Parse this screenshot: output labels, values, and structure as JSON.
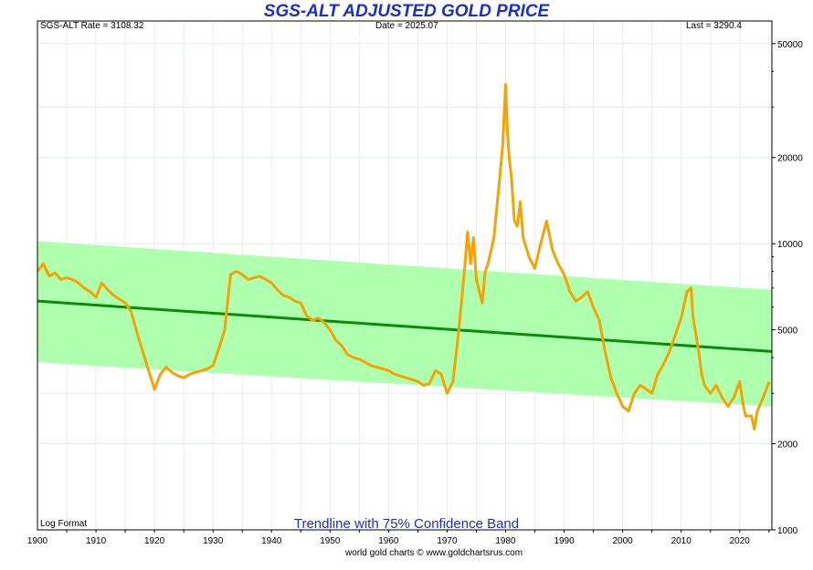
{
  "chart_data": {
    "type": "line",
    "title": "SGS-ALT ADJUSTED  GOLD PRICE",
    "info": {
      "rate": "SGS-ALT Rate = 3108.32",
      "date": "Date = 2025.07",
      "last": "Last = 3290.4"
    },
    "scale_label": "Log Format",
    "band_label": "Trendline with 75% Confidence Band",
    "credit": "world gold charts © www.goldchartsrus.com",
    "y_scale": "log",
    "ylim": [
      1000,
      60000
    ],
    "xlim": [
      1900,
      2025.5
    ],
    "y_ticks": [
      1000,
      2000,
      5000,
      10000,
      20000,
      50000
    ],
    "x_ticks": [
      1900,
      1910,
      1920,
      1930,
      1940,
      1950,
      1960,
      1970,
      1980,
      1990,
      2000,
      2010,
      2020
    ],
    "grid": true,
    "colors": {
      "series": "#f5a300",
      "trend": "#0a8a0a",
      "band": "#aaffaa",
      "title": "#1a2fd0"
    },
    "trendline": {
      "x": [
        1900,
        2025.5
      ],
      "y": [
        6300,
        4200
      ]
    },
    "band": {
      "upper": [
        10200,
        6900
      ],
      "lower": [
        3850,
        2700
      ]
    },
    "series": [
      {
        "x": [
          1900,
          1901,
          1902,
          1903,
          1904,
          1905,
          1906,
          1907,
          1908,
          1909,
          1910,
          1911,
          1912,
          1913,
          1914,
          1915,
          1916,
          1917,
          1918,
          1919,
          1920,
          1921,
          1922,
          1923,
          1924,
          1925,
          1926,
          1927,
          1928,
          1929,
          1930,
          1931,
          1932,
          1933,
          1934,
          1935,
          1936,
          1937,
          1938,
          1939,
          1940,
          1941,
          1942,
          1943,
          1944,
          1945,
          1946,
          1947,
          1948,
          1949,
          1950,
          1951,
          1952,
          1953,
          1954,
          1955,
          1956,
          1957,
          1958,
          1959,
          1960,
          1961,
          1962,
          1963,
          1964,
          1965,
          1966,
          1967,
          1968,
          1969,
          1970,
          1971,
          1972,
          1973,
          1973.5,
          1974,
          1974.5,
          1975,
          1976,
          1976.5,
          1977,
          1978,
          1979,
          1979.5,
          1980,
          1980.3,
          1980.6,
          1981,
          1981.5,
          1982,
          1982.5,
          1983,
          1984,
          1985,
          1986,
          1987,
          1988,
          1989,
          1990,
          1991,
          1992,
          1993,
          1994,
          1995,
          1996,
          1997,
          1998,
          1999,
          2000,
          2001,
          2002,
          2003,
          2004,
          2005,
          2006,
          2007,
          2008,
          2009,
          2010,
          2011,
          2011.7,
          2012,
          2013,
          2013.5,
          2014,
          2015,
          2016,
          2017,
          2018,
          2019,
          2020,
          2020.5,
          2021,
          2022,
          2022.5,
          2023,
          2024,
          2025.07
        ],
        "values": [
          8000,
          8500,
          7700,
          7900,
          7500,
          7600,
          7500,
          7300,
          7000,
          6800,
          6500,
          7300,
          6900,
          6600,
          6400,
          6200,
          5800,
          4900,
          4200,
          3600,
          3100,
          3500,
          3700,
          3550,
          3450,
          3400,
          3500,
          3550,
          3600,
          3650,
          3750,
          4300,
          5000,
          7800,
          8000,
          7800,
          7500,
          7600,
          7700,
          7500,
          7300,
          6900,
          6600,
          6500,
          6300,
          6200,
          5600,
          5400,
          5500,
          5300,
          5000,
          4600,
          4400,
          4100,
          4000,
          3950,
          3850,
          3750,
          3700,
          3650,
          3600,
          3500,
          3450,
          3400,
          3350,
          3300,
          3200,
          3250,
          3600,
          3500,
          3000,
          3300,
          5000,
          8200,
          11000,
          8500,
          10500,
          7500,
          6200,
          8000,
          8500,
          10500,
          17000,
          22000,
          36000,
          25000,
          20000,
          17000,
          12000,
          11500,
          14000,
          10500,
          9000,
          8200,
          10000,
          12000,
          9500,
          8500,
          7800,
          6800,
          6300,
          6500,
          6800,
          6000,
          5400,
          4200,
          3400,
          3000,
          2700,
          2600,
          3000,
          3200,
          3100,
          3000,
          3500,
          3800,
          4200,
          4800,
          5500,
          6800,
          7000,
          5600,
          4200,
          3500,
          3200,
          3000,
          3200,
          2900,
          2700,
          2900,
          3300,
          2800,
          2500,
          2500,
          2250,
          2600,
          2900,
          3290
        ]
      }
    ]
  }
}
